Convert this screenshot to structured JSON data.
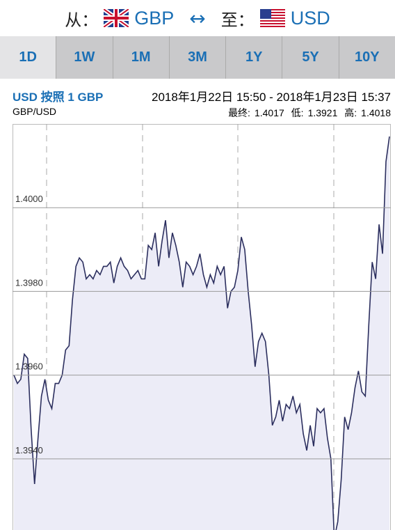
{
  "header": {
    "from_label": "从：",
    "from_currency": "GBP",
    "arrow": "↔",
    "to_label": "至：",
    "to_currency": "USD"
  },
  "tabs": [
    "1D",
    "1W",
    "1M",
    "3M",
    "1Y",
    "5Y",
    "10Y"
  ],
  "info": {
    "title": "USD 按照 1 GBP",
    "range": "2018年1月22日 15:50 - 2018年1月23日 15:37",
    "pair": "GBP/USD",
    "stats": [
      {
        "label": "最终:",
        "value": "1.4017"
      },
      {
        "label": "低:",
        "value": "1.3921"
      },
      {
        "label": "高:",
        "value": "1.4018"
      }
    ]
  },
  "chart_data": {
    "type": "line",
    "color": "#2b2e5e",
    "ylim": [
      1.3923,
      1.402
    ],
    "yticks": [
      {
        "value": 1.394,
        "label": "1.3940"
      },
      {
        "value": 1.396,
        "label": "1.3960"
      },
      {
        "value": 1.398,
        "label": "1.3980"
      },
      {
        "value": 1.4,
        "label": "1.4000"
      }
    ],
    "grid": true,
    "values": [
      1.396,
      1.3958,
      1.3959,
      1.3965,
      1.3964,
      1.3947,
      1.3934,
      1.3945,
      1.3955,
      1.3959,
      1.3954,
      1.3952,
      1.3958,
      1.3958,
      1.396,
      1.3966,
      1.3967,
      1.3978,
      1.3986,
      1.3988,
      1.3987,
      1.3983,
      1.3984,
      1.3983,
      1.3985,
      1.3984,
      1.3986,
      1.3986,
      1.3987,
      1.3982,
      1.3986,
      1.3988,
      1.3986,
      1.3985,
      1.3983,
      1.3984,
      1.3985,
      1.3983,
      1.3983,
      1.3991,
      1.399,
      1.3994,
      1.3986,
      1.3992,
      1.3997,
      1.3988,
      1.3994,
      1.3991,
      1.3987,
      1.3981,
      1.3987,
      1.3986,
      1.3984,
      1.3986,
      1.3989,
      1.3984,
      1.3981,
      1.3984,
      1.3982,
      1.3986,
      1.3984,
      1.3986,
      1.3976,
      1.398,
      1.3981,
      1.3985,
      1.3993,
      1.399,
      1.398,
      1.3972,
      1.3962,
      1.3968,
      1.397,
      1.3968,
      1.396,
      1.3948,
      1.395,
      1.3954,
      1.3949,
      1.3953,
      1.3952,
      1.3955,
      1.3951,
      1.3953,
      1.3946,
      1.3942,
      1.3948,
      1.3943,
      1.3952,
      1.3951,
      1.3952,
      1.3945,
      1.394,
      1.3921,
      1.3925,
      1.3935,
      1.395,
      1.3947,
      1.3951,
      1.3957,
      1.3961,
      1.3956,
      1.3955,
      1.3972,
      1.3987,
      1.3983,
      1.3996,
      1.3989,
      1.4011,
      1.4017
    ]
  }
}
